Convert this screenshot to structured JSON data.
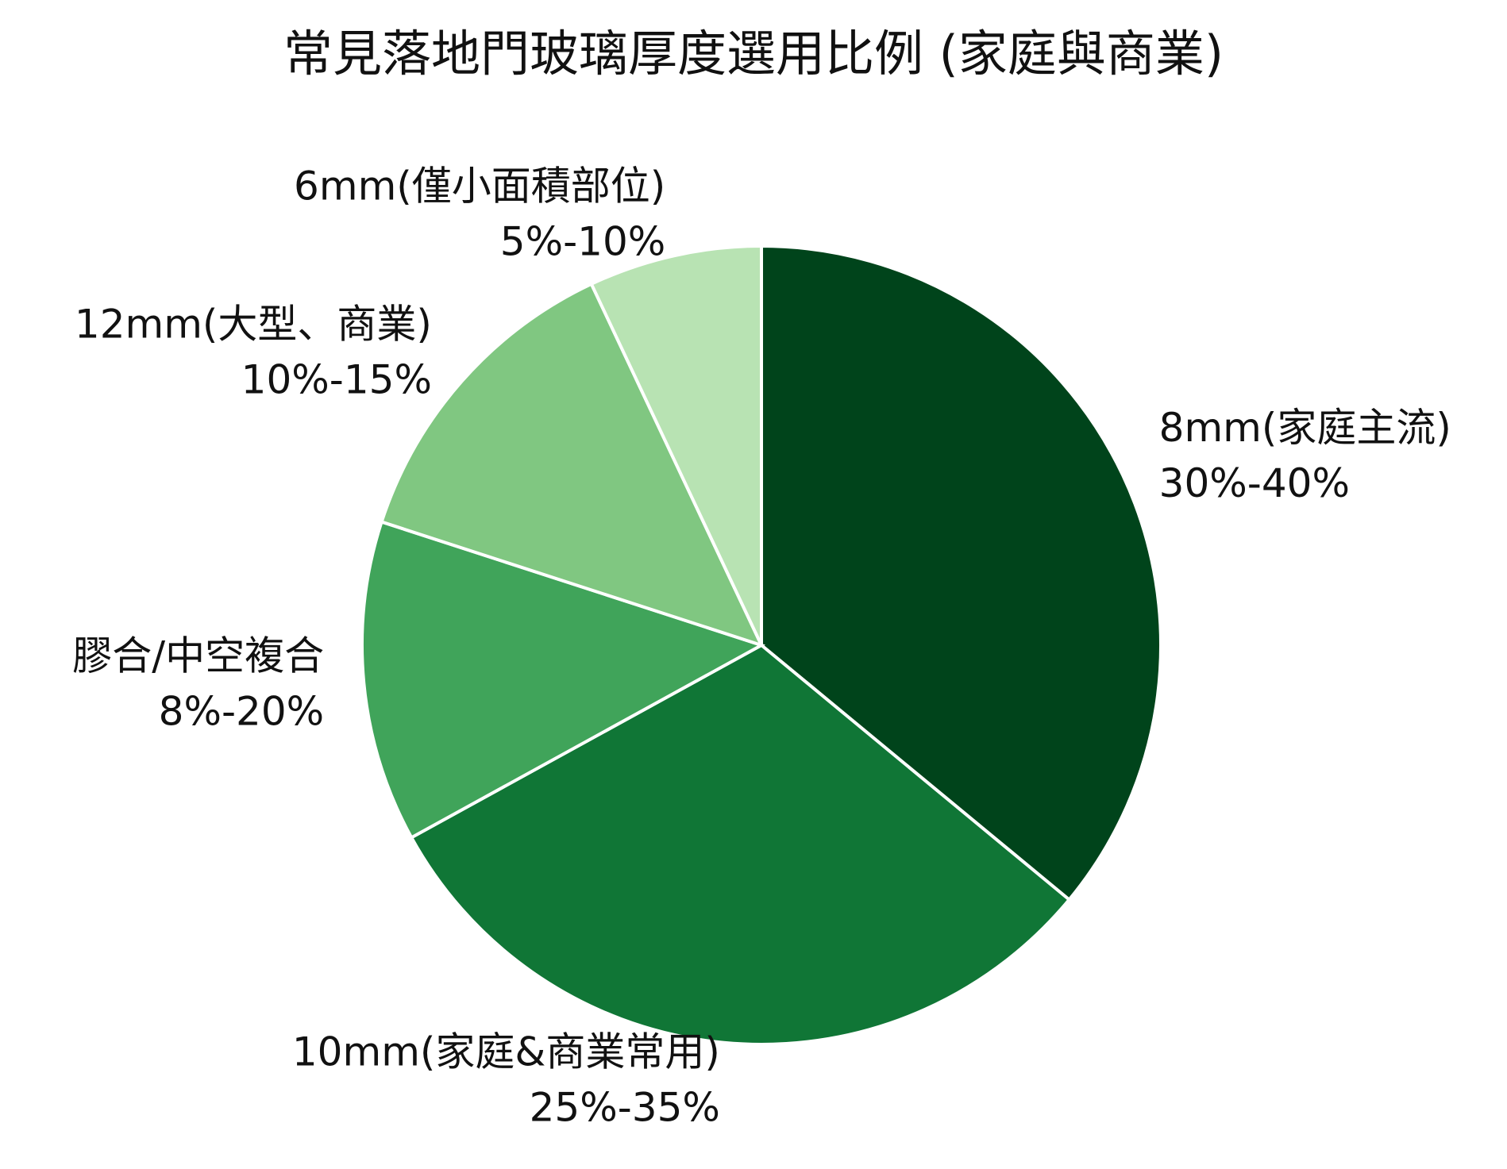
{
  "chart_data": {
    "type": "pie",
    "title": "常見落地門玻璃厚度選用比例 (家庭與商業)",
    "categories": [
      "8mm(家庭主流)",
      "10mm(家庭&商業常用)",
      "膠合/中空複合",
      "12mm(大型、商業)",
      "6mm(僅小面積部位)"
    ],
    "values": [
      36,
      31,
      13,
      13,
      7
    ],
    "value_labels": [
      "30%-40%",
      "25%-35%",
      "8%-20%",
      "10%-15%",
      "5%-10%"
    ],
    "colors": [
      "#00441b",
      "#107636",
      "#40a45a",
      "#80c781",
      "#b8e3b3"
    ]
  }
}
